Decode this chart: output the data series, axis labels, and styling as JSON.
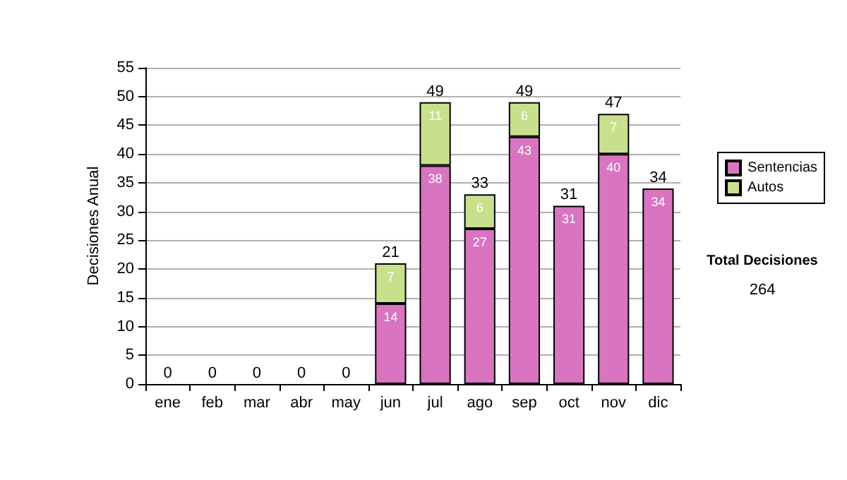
{
  "chart_data": {
    "type": "bar",
    "stacked": true,
    "ylabel": "Decisiones Anual",
    "categories": [
      "ene",
      "feb",
      "mar",
      "abr",
      "may",
      "jun",
      "jul",
      "ago",
      "sep",
      "oct",
      "nov",
      "dic"
    ],
    "series": [
      {
        "name": "Sentencias",
        "color": "#d874c0",
        "values": [
          0,
          0,
          0,
          0,
          0,
          14,
          38,
          27,
          43,
          31,
          40,
          34
        ],
        "value_labels": [
          null,
          null,
          null,
          null,
          null,
          "14",
          "38",
          "27",
          "43",
          "31",
          "40",
          "34"
        ]
      },
      {
        "name": "Autos",
        "color": "#c8e08c",
        "values": [
          0,
          0,
          0,
          0,
          0,
          7,
          11,
          6,
          6,
          0,
          7,
          0
        ],
        "value_labels": [
          null,
          null,
          null,
          null,
          null,
          "7",
          "11",
          "6",
          "6",
          null,
          "7",
          null
        ]
      }
    ],
    "totals": [
      "0",
      "0",
      "0",
      "0",
      "0",
      "21",
      "49",
      "33",
      "49",
      "31",
      "47",
      "34"
    ],
    "ylim": [
      0,
      55
    ],
    "yticks": [
      0,
      5,
      10,
      15,
      20,
      25,
      30,
      35,
      40,
      45,
      50,
      55
    ],
    "grid": "y",
    "legend": "right",
    "annotations": [
      "Total Decisiones",
      "264"
    ]
  }
}
